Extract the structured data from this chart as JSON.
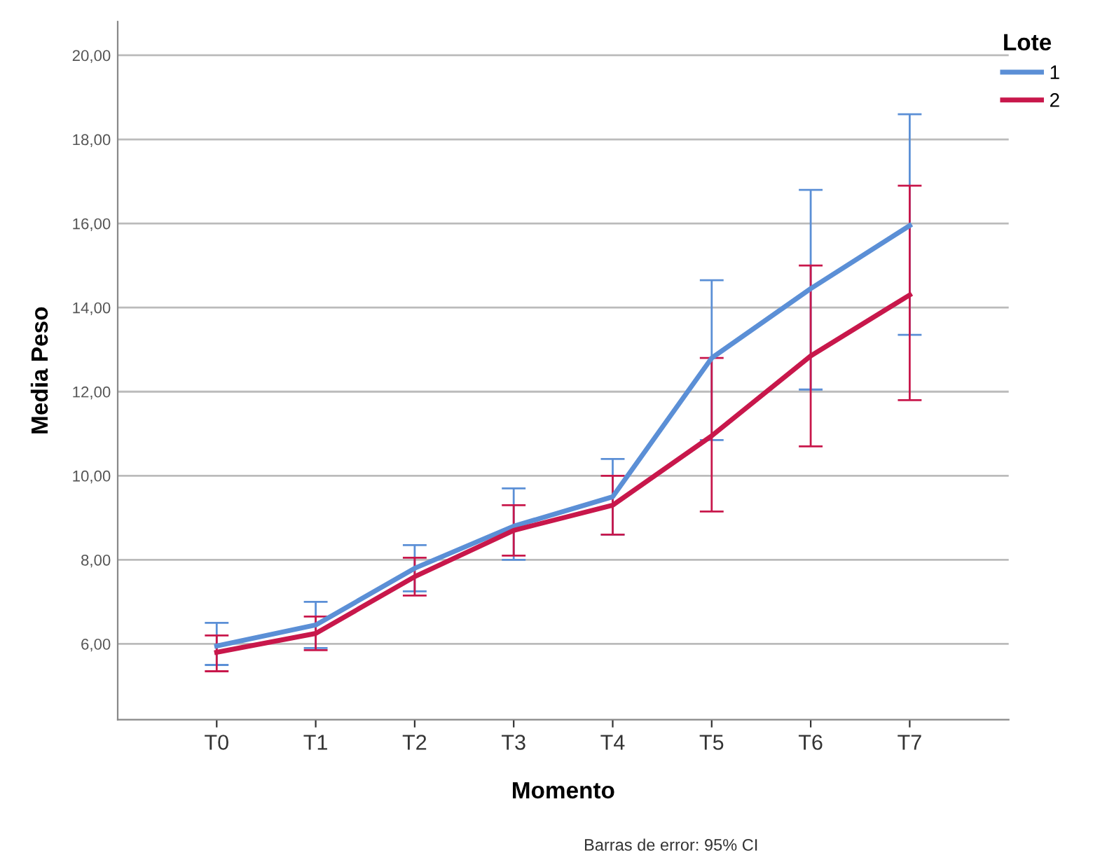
{
  "chart_data": {
    "type": "line",
    "xlabel": "Momento",
    "ylabel": "Media Peso",
    "legend_title": "Lote",
    "categories": [
      "T0",
      "T1",
      "T2",
      "T3",
      "T4",
      "T5",
      "T6",
      "T7"
    ],
    "series": [
      {
        "name": "1",
        "color": "#5b8fd6",
        "values": [
          5.95,
          6.45,
          7.8,
          8.8,
          9.5,
          12.8,
          14.45,
          15.95
        ],
        "errors": [
          [
            5.5,
            6.5
          ],
          [
            5.9,
            7.0
          ],
          [
            7.25,
            8.35
          ],
          [
            8.0,
            9.7
          ],
          [
            8.6,
            10.4
          ],
          [
            10.85,
            14.65
          ],
          [
            12.05,
            16.8
          ],
          [
            13.35,
            18.6
          ]
        ]
      },
      {
        "name": "2",
        "color": "#c8174b",
        "values": [
          5.8,
          6.25,
          7.6,
          8.7,
          9.3,
          10.95,
          12.85,
          14.3
        ],
        "errors": [
          [
            5.35,
            6.2
          ],
          [
            5.85,
            6.65
          ],
          [
            7.15,
            8.05
          ],
          [
            8.1,
            9.3
          ],
          [
            8.6,
            10.0
          ],
          [
            9.15,
            12.8
          ],
          [
            10.7,
            15.0
          ],
          [
            11.8,
            16.9
          ]
        ]
      }
    ],
    "ylim": [
      4.2,
      20.8
    ],
    "yticks": [
      {
        "value": 6,
        "label": "6,00"
      },
      {
        "value": 8,
        "label": "8,00"
      },
      {
        "value": 10,
        "label": "10,00"
      },
      {
        "value": 12,
        "label": "12,00"
      },
      {
        "value": 14,
        "label": "14,00"
      },
      {
        "value": 16,
        "label": "16,00"
      },
      {
        "value": 18,
        "label": "18,00"
      },
      {
        "value": 20,
        "label": "20,00"
      }
    ],
    "grid": "y",
    "legend": "top right",
    "marker": "none",
    "line_style": "solid",
    "annotations": [
      "Barras de error: 95% CI"
    ]
  }
}
